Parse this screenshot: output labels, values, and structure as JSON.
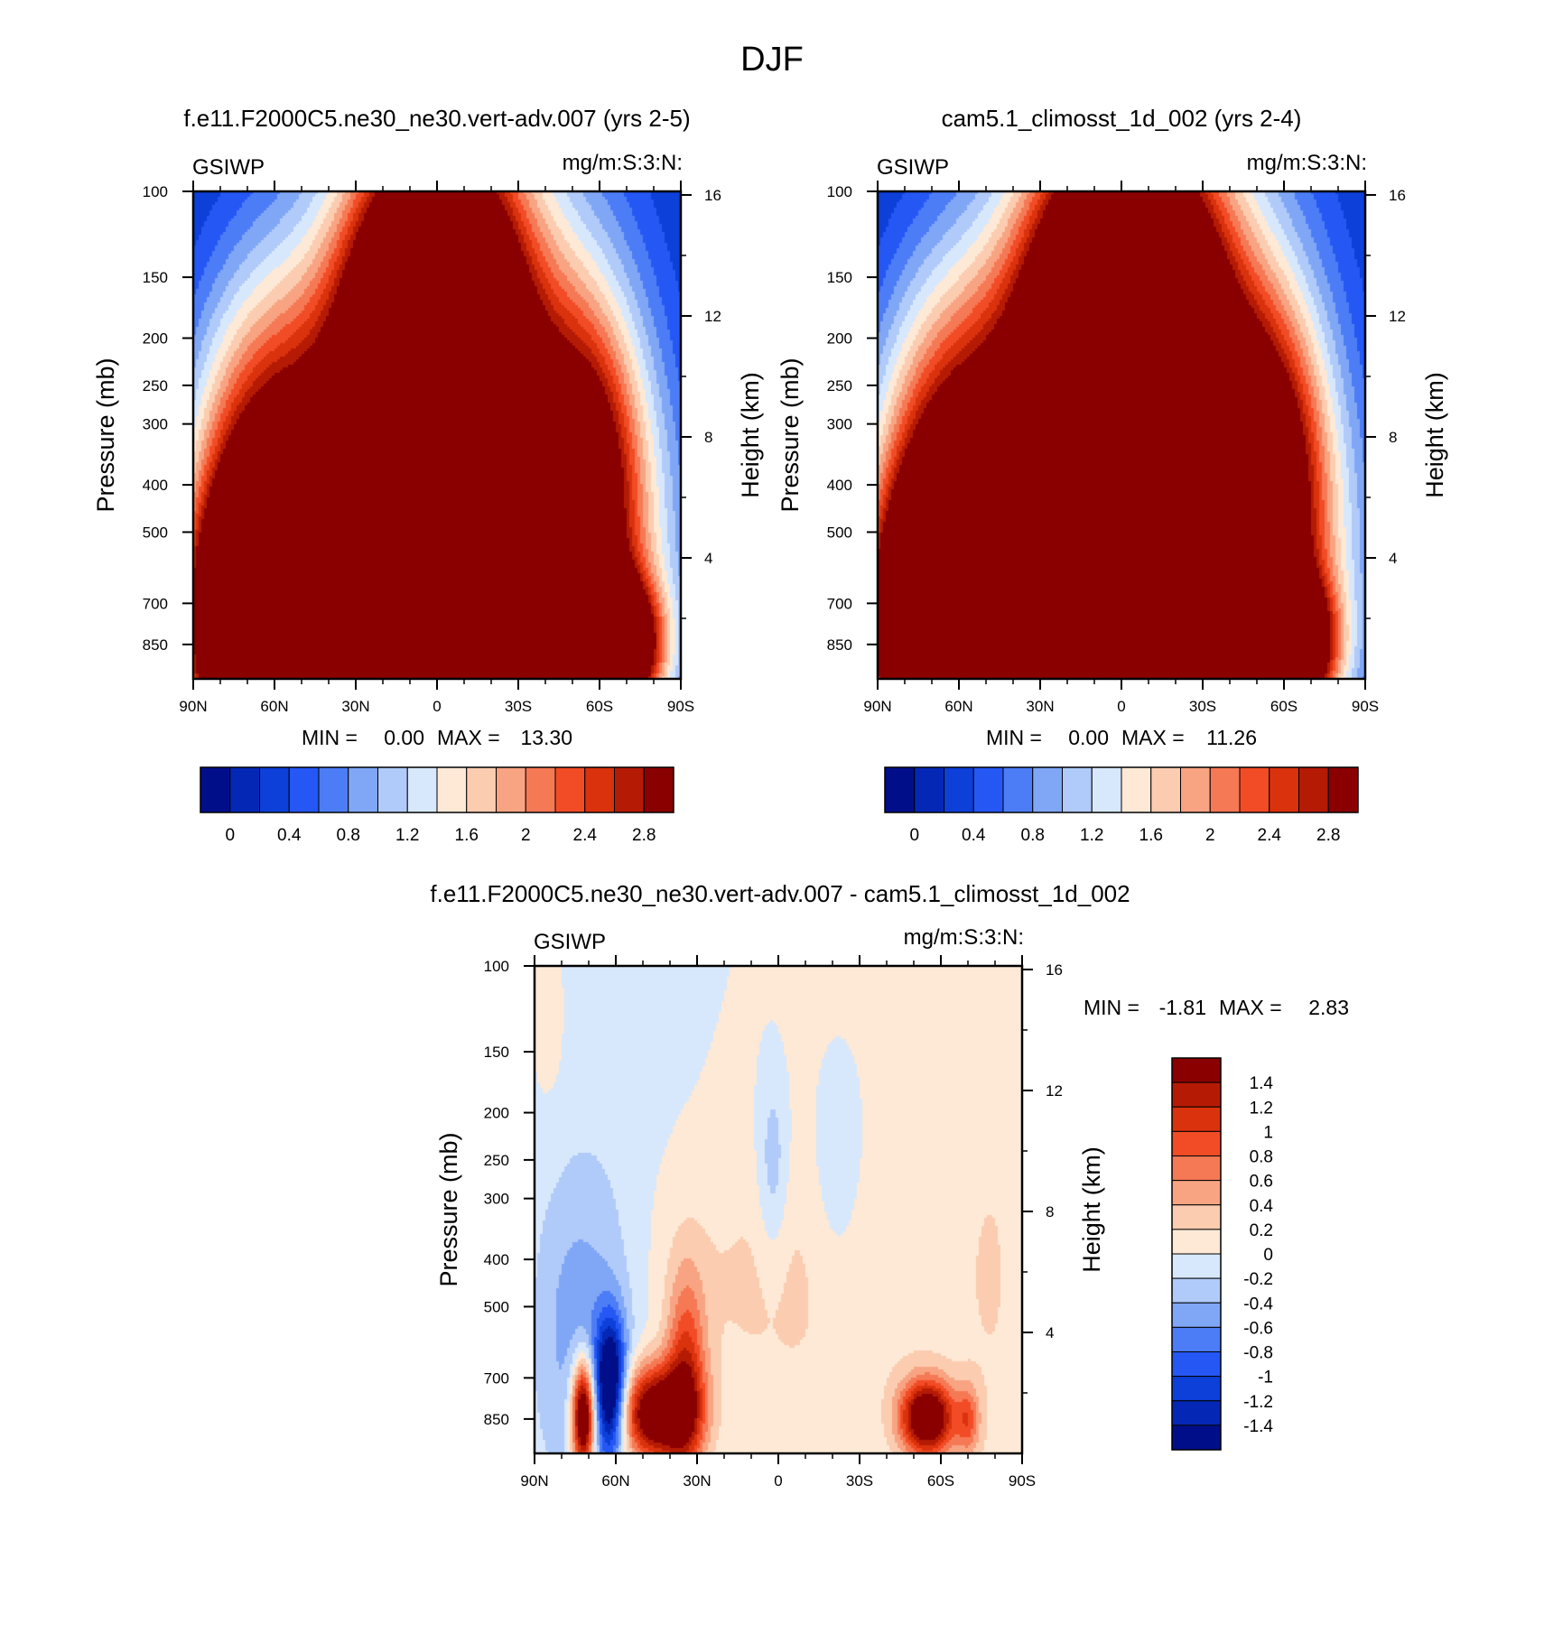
{
  "figure": {
    "title": "DJF",
    "background": "#ffffff"
  },
  "chart_data": [
    {
      "type": "heatmap",
      "id": "p1",
      "title": "f.e11.F2000C5.ne30_ne30.vert-adv.007 (yrs 2-5)",
      "left_label": "GSIWP",
      "right_label": "mg/m:S:3:N:",
      "ylabel": "Pressure (mb)",
      "ylabel_right": "Height (km)",
      "x_range": [
        -90,
        90
      ],
      "x_ticks": [
        {
          "v": -90,
          "label": "90N"
        },
        {
          "v": -60,
          "label": "60N"
        },
        {
          "v": -30,
          "label": "30N"
        },
        {
          "v": 0,
          "label": "0"
        },
        {
          "v": 30,
          "label": "30S"
        },
        {
          "v": 60,
          "label": "60S"
        },
        {
          "v": 90,
          "label": "90S"
        }
      ],
      "y_scale": "log",
      "y_range": [
        100,
        1000
      ],
      "y_ticks": [
        100,
        150,
        200,
        250,
        300,
        400,
        500,
        700,
        850
      ],
      "y_ticks_right": [
        {
          "v": 16,
          "label": "16"
        },
        {
          "v": 12,
          "label": "12"
        },
        {
          "v": 8,
          "label": "8"
        },
        {
          "v": 4,
          "label": "4"
        }
      ],
      "min": "0.00",
      "max": "13.30",
      "min_label": "MIN =",
      "max_label": "MAX =",
      "levels": [
        0,
        0.2,
        0.4,
        0.6,
        0.8,
        1.0,
        1.2,
        1.4,
        1.6,
        1.8,
        2.0,
        2.2,
        2.4,
        2.6,
        2.8
      ],
      "colorbar_labels": [
        "0",
        "0.4",
        "0.8",
        "1.2",
        "1.6",
        "2",
        "2.4",
        "2.8"
      ],
      "features": [
        {
          "x": 0,
          "p": 300,
          "amp": 4.8,
          "sx": 22,
          "sy": 0.38
        },
        {
          "x": 0,
          "p": 480,
          "amp": 3.2,
          "sx": 17,
          "sy": 0.22
        },
        {
          "x": -4,
          "p": 190,
          "amp": 1.9,
          "sx": 20,
          "sy": 0.22
        },
        {
          "x": 2,
          "p": 300,
          "amp": 1.3,
          "sx": 42,
          "sy": 0.62
        },
        {
          "x": -60,
          "p": 800,
          "amp": 6.5,
          "sx": 18,
          "sy": 0.18
        },
        {
          "x": -55,
          "p": 430,
          "amp": 1.9,
          "sx": 22,
          "sy": 0.3
        },
        {
          "x": -68,
          "p": 560,
          "amp": 1.6,
          "sx": 20,
          "sy": 0.35
        },
        {
          "x": 60,
          "p": 860,
          "amp": 5.5,
          "sx": 13,
          "sy": 0.09
        },
        {
          "x": 55,
          "p": 380,
          "amp": 1.9,
          "sx": 14,
          "sy": 0.24
        },
        {
          "x": 45,
          "p": 480,
          "amp": 1.0,
          "sx": 32,
          "sy": 0.45
        },
        {
          "x": 60,
          "p": 650,
          "amp": 0.8,
          "sx": 22,
          "sy": 0.25
        }
      ]
    },
    {
      "type": "heatmap",
      "id": "p2",
      "title": "cam5.1_climosst_1d_002 (yrs 2-4)",
      "left_label": "GSIWP",
      "right_label": "mg/m:S:3:N:",
      "ylabel": "Pressure (mb)",
      "ylabel_right": "Height (km)",
      "x_range": [
        -90,
        90
      ],
      "x_ticks": [
        {
          "v": -90,
          "label": "90N"
        },
        {
          "v": -60,
          "label": "60N"
        },
        {
          "v": -30,
          "label": "30N"
        },
        {
          "v": 0,
          "label": "0"
        },
        {
          "v": 30,
          "label": "30S"
        },
        {
          "v": 60,
          "label": "60S"
        },
        {
          "v": 90,
          "label": "90S"
        }
      ],
      "y_scale": "log",
      "y_range": [
        100,
        1000
      ],
      "y_ticks": [
        100,
        150,
        200,
        250,
        300,
        400,
        500,
        700,
        850
      ],
      "y_ticks_right": [
        {
          "v": 16,
          "label": "16"
        },
        {
          "v": 12,
          "label": "12"
        },
        {
          "v": 8,
          "label": "8"
        },
        {
          "v": 4,
          "label": "4"
        }
      ],
      "min": "0.00",
      "max": "11.26",
      "min_label": "MIN =",
      "max_label": "MAX =",
      "levels": [
        0,
        0.2,
        0.4,
        0.6,
        0.8,
        1.0,
        1.2,
        1.4,
        1.6,
        1.8,
        2.0,
        2.2,
        2.4,
        2.6,
        2.8
      ],
      "colorbar_labels": [
        "0",
        "0.4",
        "0.8",
        "1.2",
        "1.6",
        "2",
        "2.4",
        "2.8"
      ],
      "features": [
        {
          "x": 2,
          "p": 320,
          "amp": 5.6,
          "sx": 24,
          "sy": 0.4
        },
        {
          "x": 2,
          "p": 470,
          "amp": 3.2,
          "sx": 18,
          "sy": 0.22
        },
        {
          "x": -2,
          "p": 190,
          "amp": 2.0,
          "sx": 22,
          "sy": 0.22
        },
        {
          "x": 2,
          "p": 300,
          "amp": 1.3,
          "sx": 42,
          "sy": 0.62
        },
        {
          "x": -60,
          "p": 800,
          "amp": 6.5,
          "sx": 19,
          "sy": 0.18
        },
        {
          "x": -55,
          "p": 430,
          "amp": 2.0,
          "sx": 22,
          "sy": 0.3
        },
        {
          "x": -68,
          "p": 560,
          "amp": 1.6,
          "sx": 20,
          "sy": 0.35
        },
        {
          "x": 58,
          "p": 860,
          "amp": 5.0,
          "sx": 12,
          "sy": 0.09
        },
        {
          "x": 55,
          "p": 380,
          "amp": 1.9,
          "sx": 14,
          "sy": 0.24
        },
        {
          "x": 45,
          "p": 480,
          "amp": 1.0,
          "sx": 32,
          "sy": 0.45
        },
        {
          "x": 60,
          "p": 650,
          "amp": 0.8,
          "sx": 22,
          "sy": 0.25
        }
      ]
    },
    {
      "type": "heatmap",
      "id": "p3",
      "title": "f.e11.F2000C5.ne30_ne30.vert-adv.007 - cam5.1_climosst_1d_002",
      "left_label": "GSIWP",
      "right_label": "mg/m:S:3:N:",
      "ylabel": "Pressure (mb)",
      "ylabel_right": "Height (km)",
      "x_range": [
        -90,
        90
      ],
      "x_ticks": [
        {
          "v": -90,
          "label": "90N"
        },
        {
          "v": -60,
          "label": "60N"
        },
        {
          "v": -30,
          "label": "30N"
        },
        {
          "v": 0,
          "label": "0"
        },
        {
          "v": 30,
          "label": "30S"
        },
        {
          "v": 60,
          "label": "60S"
        },
        {
          "v": 90,
          "label": "90S"
        }
      ],
      "y_scale": "log",
      "y_range": [
        100,
        1000
      ],
      "y_ticks": [
        100,
        150,
        200,
        250,
        300,
        400,
        500,
        700,
        850
      ],
      "y_ticks_right": [
        {
          "v": 16,
          "label": "16"
        },
        {
          "v": 12,
          "label": "12"
        },
        {
          "v": 8,
          "label": "8"
        },
        {
          "v": 4,
          "label": "4"
        }
      ],
      "min": "-1.81",
      "max": "2.83",
      "min_label": "MIN =",
      "max_label": "MAX =",
      "levels": [
        -1.4,
        -1.2,
        -1.0,
        -0.8,
        -0.6,
        -0.4,
        -0.2,
        0,
        0.2,
        0.4,
        0.6,
        0.8,
        1.0,
        1.2,
        1.4
      ],
      "colorbar_labels": [
        "1.4",
        "1.2",
        "1",
        "0.8",
        "0.6",
        "0.4",
        "0.2",
        "0",
        "-0.2",
        "-0.4",
        "-0.6",
        "-0.8",
        "-1",
        "-1.2",
        "-1.4"
      ],
      "base": -0.08,
      "features": [
        {
          "x": 20,
          "p": 320,
          "amp": 0.16,
          "sx": 40,
          "sy": 0.7
        },
        {
          "x": 80,
          "p": 300,
          "amp": 0.18,
          "sx": 10,
          "sy": 1.2
        },
        {
          "x": -85,
          "p": 130,
          "amp": 0.16,
          "sx": 5,
          "sy": 0.15
        },
        {
          "x": -4,
          "p": 450,
          "amp": 0.2,
          "sx": 55,
          "sy": 0.18
        },
        {
          "x": -2,
          "p": 260,
          "amp": -0.4,
          "sx": 4,
          "sy": 0.14
        },
        {
          "x": 22,
          "p": 300,
          "amp": -0.25,
          "sx": 8,
          "sy": 0.2
        },
        {
          "x": -62,
          "p": 740,
          "amp": -1.9,
          "sx": 4,
          "sy": 0.1
        },
        {
          "x": -65,
          "p": 560,
          "amp": -0.35,
          "sx": 12,
          "sy": 0.25
        },
        {
          "x": -78,
          "p": 520,
          "amp": -0.3,
          "sx": 10,
          "sy": 0.2
        },
        {
          "x": -72,
          "p": 840,
          "amp": 2.3,
          "sx": 3,
          "sy": 0.08
        },
        {
          "x": -45,
          "p": 830,
          "amp": 2.0,
          "sx": 10,
          "sy": 0.07
        },
        {
          "x": -34,
          "p": 700,
          "amp": 1.0,
          "sx": 5,
          "sy": 0.15
        },
        {
          "x": 55,
          "p": 845,
          "amp": 2.0,
          "sx": 7,
          "sy": 0.055
        },
        {
          "x": 70,
          "p": 855,
          "amp": 0.7,
          "sx": 3,
          "sy": 0.05
        }
      ]
    }
  ],
  "colormap": [
    "#000f89",
    "#0428b5",
    "#0d3fd9",
    "#2457f4",
    "#4c7df7",
    "#80a7f6",
    "#b0cbf9",
    "#d8e8fc",
    "#fde9d6",
    "#fbccb0",
    "#f8a482",
    "#f57954",
    "#f24c26",
    "#d9320c",
    "#b51b04",
    "#8a0000"
  ]
}
